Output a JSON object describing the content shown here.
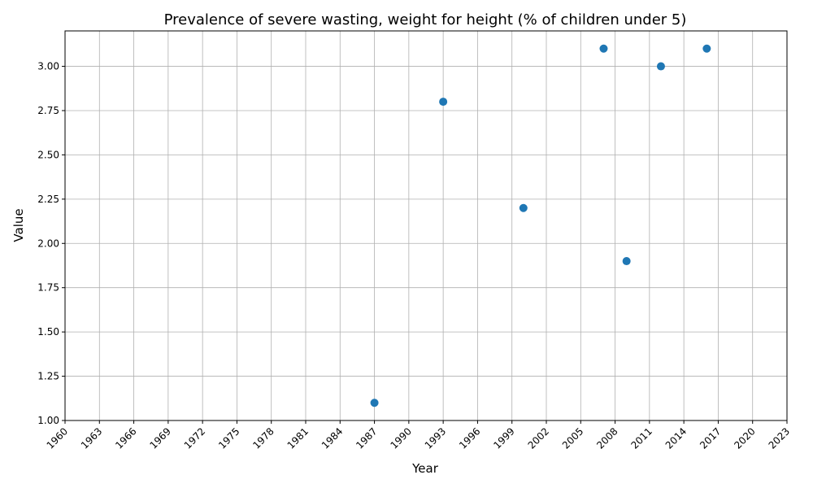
{
  "chart_data": {
    "type": "scatter",
    "title": "Prevalence of severe wasting, weight for height (% of children under 5)",
    "xlabel": "Year",
    "ylabel": "Value",
    "xlim": [
      1960,
      2023
    ],
    "ylim": [
      1.0,
      3.2
    ],
    "grid": true,
    "marker_color": "#1f77b4",
    "x_ticks": [
      1960,
      1963,
      1966,
      1969,
      1972,
      1975,
      1978,
      1981,
      1984,
      1987,
      1990,
      1993,
      1996,
      1999,
      2002,
      2005,
      2008,
      2011,
      2014,
      2017,
      2020,
      2023
    ],
    "y_ticks": [
      1.0,
      1.25,
      1.5,
      1.75,
      2.0,
      2.25,
      2.5,
      2.75,
      3.0
    ],
    "y_tick_labels": [
      "1.00",
      "1.25",
      "1.50",
      "1.75",
      "2.00",
      "2.25",
      "2.50",
      "2.75",
      "3.00"
    ],
    "x": [
      1987,
      1993,
      2000,
      2007,
      2009,
      2012,
      2016
    ],
    "y": [
      1.1,
      2.8,
      2.2,
      3.1,
      1.9,
      3.0,
      3.1
    ]
  }
}
